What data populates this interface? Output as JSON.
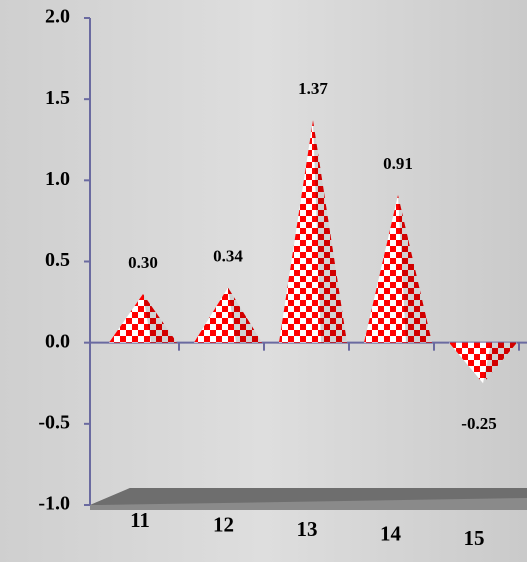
{
  "chart_data": {
    "type": "pyramid",
    "categories": [
      "11",
      "12",
      "13",
      "14",
      "15"
    ],
    "values": [
      0.3,
      0.34,
      1.37,
      0.91,
      -0.25
    ],
    "value_labels": [
      "0.30",
      "0.34",
      "1.37",
      "0.91",
      "-0.25"
    ],
    "color": "#ff0000",
    "ylim": [
      -1.0,
      2.0
    ],
    "yticks": [
      {
        "value": -1.0,
        "label": "-1.0"
      },
      {
        "value": -0.5,
        "label": "-0.5"
      },
      {
        "value": 0,
        "label": "0.0"
      },
      {
        "value": 0.5,
        "label": "0.5"
      },
      {
        "value": 1.0,
        "label": "1.0"
      },
      {
        "value": 1.5,
        "label": "1.5"
      },
      {
        "value": 2.0,
        "label": "2.0"
      }
    ]
  }
}
